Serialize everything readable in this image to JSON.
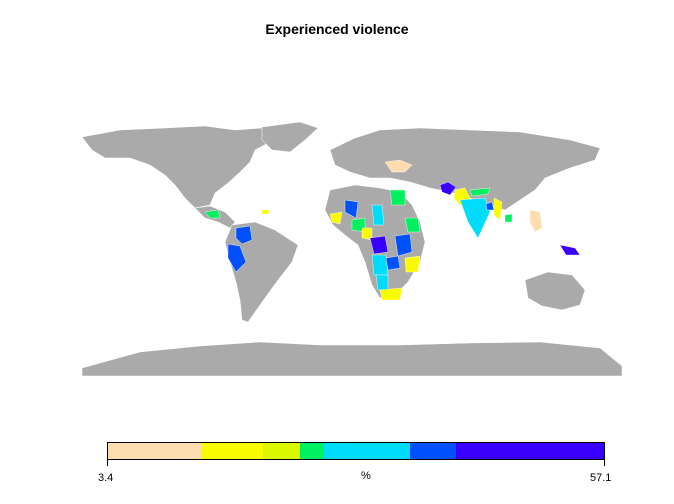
{
  "title": "Experienced violence",
  "legend": {
    "unit_label": "%",
    "min_label": "3.4",
    "max_label": "57.1",
    "colors": [
      "#fddcb0",
      "#fbfb00",
      "#dcf800",
      "#00f060",
      "#00dcfc",
      "#0050fc",
      "#3800fc"
    ],
    "no_data_color": "#aaaaaa"
  }
}
